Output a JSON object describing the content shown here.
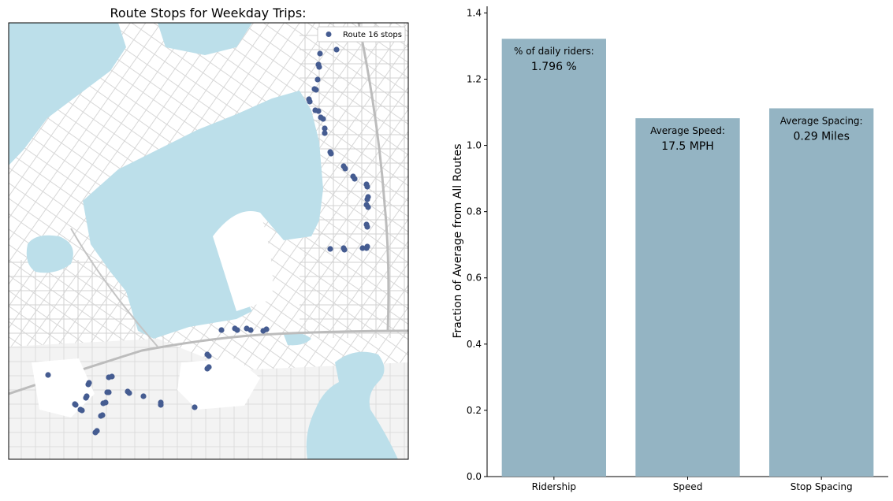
{
  "chart_data": [
    {
      "type": "scatter",
      "title": "Route Stops for Weekday Trips:",
      "legend": {
        "position": "top-right",
        "entries": [
          "Route 16 stops"
        ]
      },
      "series": [
        {
          "name": "Route 16 stops",
          "color": "#455c91"
        }
      ],
      "background": "street map of Madison, WI area (Lake Monona, Lake Mendota shoreline)",
      "axes": "hidden"
    },
    {
      "type": "bar",
      "categories": [
        "Ridership",
        "Speed",
        "Stop Spacing"
      ],
      "values": [
        1.322,
        1.082,
        1.112
      ],
      "ylabel": "Fraction of Average from All Routes",
      "xlabel": "",
      "ylim": [
        0,
        1.42
      ],
      "yticks": [
        "0.0",
        "0.2",
        "0.4",
        "0.6",
        "0.8",
        "1.0",
        "1.2",
        "1.4"
      ],
      "bar_color": "#94b4c3",
      "annotations": [
        {
          "label": "% of daily riders:",
          "value": "1.796 %"
        },
        {
          "label": "Average Speed:",
          "value": "17.5 MPH"
        },
        {
          "label": "Average Spacing:",
          "value": "0.29 Miles"
        }
      ],
      "grid": false
    }
  ]
}
